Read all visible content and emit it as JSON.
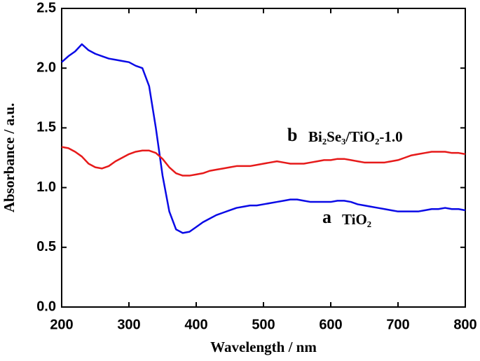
{
  "chart_data": {
    "type": "line",
    "xlabel": "Wavelength / nm",
    "ylabel": "Absorbance / a.u.",
    "xlim": [
      200,
      800
    ],
    "xticks": [
      200,
      300,
      400,
      500,
      600,
      700,
      800
    ],
    "ylim": [
      0,
      2.5
    ],
    "yticks": [
      {
        "value": 0,
        "label": "0.0"
      },
      0.5,
      {
        "value": 1,
        "label": "1.0"
      },
      1.5,
      {
        "value": 2,
        "label": "2.0"
      },
      2.5
    ],
    "x": [
      200,
      210,
      220,
      230,
      240,
      250,
      260,
      270,
      280,
      290,
      300,
      310,
      320,
      330,
      340,
      350,
      360,
      370,
      380,
      390,
      400,
      410,
      420,
      430,
      440,
      450,
      460,
      470,
      480,
      490,
      500,
      510,
      520,
      530,
      540,
      550,
      560,
      570,
      580,
      590,
      600,
      610,
      620,
      630,
      640,
      650,
      660,
      670,
      680,
      690,
      700,
      710,
      720,
      730,
      740,
      750,
      760,
      770,
      780,
      790,
      800
    ],
    "series": [
      {
        "color": "#0a0ae6",
        "values": [
          2.05,
          2.1,
          2.14,
          2.2,
          2.15,
          2.12,
          2.1,
          2.08,
          2.07,
          2.06,
          2.05,
          2.02,
          2.0,
          1.85,
          1.5,
          1.1,
          0.8,
          0.65,
          0.62,
          0.63,
          0.67,
          0.71,
          0.74,
          0.77,
          0.79,
          0.81,
          0.83,
          0.84,
          0.85,
          0.85,
          0.86,
          0.87,
          0.88,
          0.89,
          0.9,
          0.9,
          0.89,
          0.88,
          0.88,
          0.88,
          0.88,
          0.89,
          0.89,
          0.88,
          0.86,
          0.85,
          0.84,
          0.83,
          0.82,
          0.81,
          0.8,
          0.8,
          0.8,
          0.8,
          0.81,
          0.82,
          0.82,
          0.83,
          0.82,
          0.82,
          0.81
        ]
      },
      {
        "color": "#e61a1a",
        "values": [
          1.34,
          1.33,
          1.3,
          1.26,
          1.2,
          1.17,
          1.16,
          1.18,
          1.22,
          1.25,
          1.28,
          1.3,
          1.31,
          1.31,
          1.29,
          1.24,
          1.17,
          1.12,
          1.1,
          1.1,
          1.11,
          1.12,
          1.14,
          1.15,
          1.16,
          1.17,
          1.18,
          1.18,
          1.18,
          1.19,
          1.2,
          1.21,
          1.22,
          1.21,
          1.2,
          1.2,
          1.2,
          1.21,
          1.22,
          1.23,
          1.23,
          1.24,
          1.24,
          1.23,
          1.22,
          1.21,
          1.21,
          1.21,
          1.21,
          1.22,
          1.23,
          1.25,
          1.27,
          1.28,
          1.29,
          1.3,
          1.3,
          1.3,
          1.29,
          1.29,
          1.28
        ]
      }
    ],
    "annotations": [
      {
        "letter": "a",
        "text": "TiO₂"
      },
      {
        "letter": "b",
        "text": "Bi₂Se₃/TiO₂-1.0"
      }
    ]
  }
}
